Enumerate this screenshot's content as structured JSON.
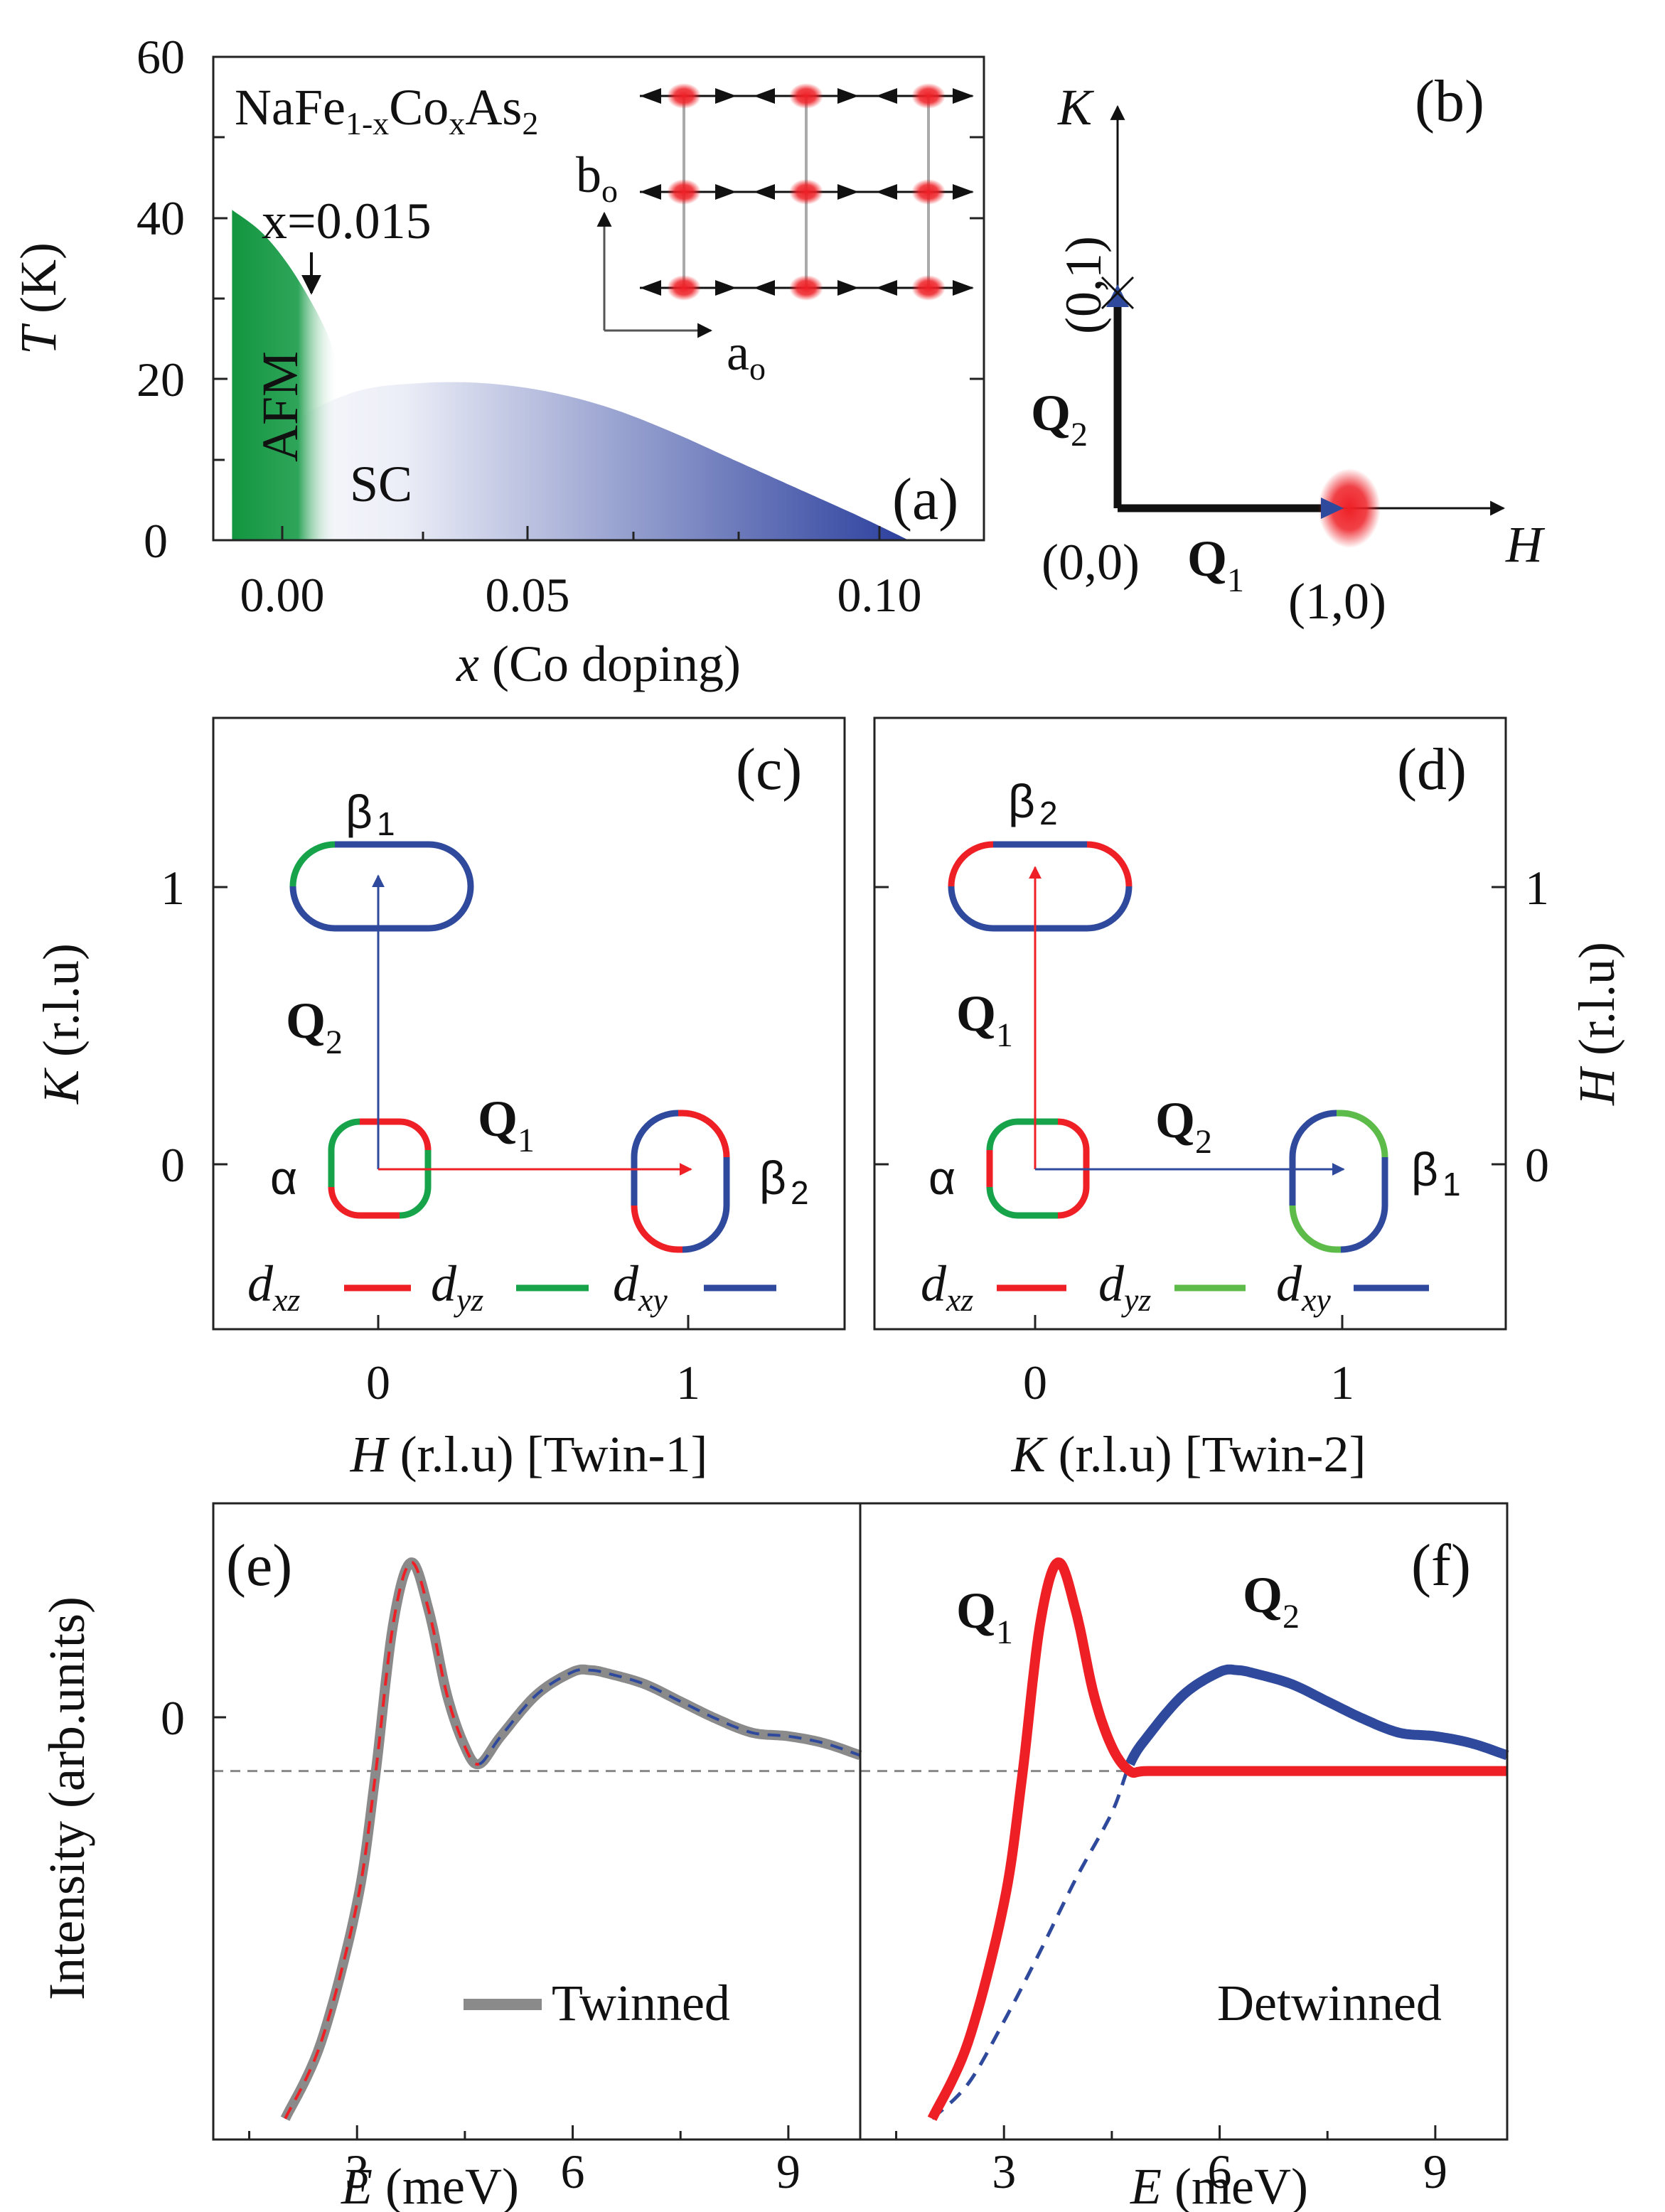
{
  "colors": {
    "afm": "#12953f",
    "sc": "#2b3f9d",
    "dxz": "#ee2026",
    "dyz": "#16a34a",
    "dyz_light": "#5dbb4a",
    "dxy": "#2f4a9c",
    "twinned": "#8a8a8a",
    "spot": "#ee2026"
  },
  "panel_a": {
    "label": "(a)",
    "formula": {
      "base": "NaFe",
      "sub1": "1-x",
      "mid": "Co",
      "sub2": "x",
      "end": "As",
      "sub3": "2"
    },
    "xlabel_var": "x",
    "xlabel_rest": " (Co doping)",
    "ylabel_var": "T",
    "ylabel_rest": " (K)",
    "xticks": [
      "0.00",
      "0.05",
      "0.10"
    ],
    "yticks": [
      "0",
      "20",
      "40",
      "60"
    ],
    "annotation": "x=0.015",
    "region_afm": "AFM",
    "region_sc": "SC",
    "inset_b": {
      "base": "b",
      "sub": "o"
    },
    "inset_a": {
      "base": "a",
      "sub": "o"
    }
  },
  "panel_b": {
    "label": "(b)",
    "k_axis": "K",
    "h_axis": "H",
    "origin": "(0,0)",
    "point_10": "(1,0)",
    "point_01": "(0,1)",
    "q1": {
      "base": "Q",
      "sub": "1"
    },
    "q2": {
      "base": "Q",
      "sub": "2"
    }
  },
  "panel_c": {
    "label": "(c)",
    "alpha": "α",
    "beta_top": {
      "base": "β",
      "sub": "1"
    },
    "beta_right": {
      "base": "β",
      "sub": "2"
    },
    "q_vertical": {
      "base": "Q",
      "sub": "2"
    },
    "q_horizontal": {
      "base": "Q",
      "sub": "1"
    },
    "xticks": [
      "0",
      "1"
    ],
    "yticks": [
      "0",
      "1"
    ],
    "xlabel_var": "H",
    "xlabel_rest": " (r.l.u) [Twin-1]",
    "ylabel_var": "K",
    "ylabel_rest": " (r.l.u)",
    "legend": [
      {
        "base": "d",
        "sub": "xz"
      },
      {
        "base": "d",
        "sub": "yz"
      },
      {
        "base": "d",
        "sub": "xy"
      }
    ]
  },
  "panel_d": {
    "label": "(d)",
    "alpha": "α",
    "beta_top": {
      "base": "β",
      "sub": "2"
    },
    "beta_right": {
      "base": "β",
      "sub": "1"
    },
    "q_vertical": {
      "base": "Q",
      "sub": "1"
    },
    "q_horizontal": {
      "base": "Q",
      "sub": "2"
    },
    "xticks": [
      "0",
      "1"
    ],
    "yticks": [
      "0",
      "1"
    ],
    "xlabel_var": "K",
    "xlabel_rest": " (r.l.u) [Twin-2]",
    "ylabel_var": "H",
    "ylabel_rest": " (r.l.u)",
    "legend": [
      {
        "base": "d",
        "sub": "xz"
      },
      {
        "base": "d",
        "sub": "yz"
      },
      {
        "base": "d",
        "sub": "xy"
      }
    ]
  },
  "panel_e": {
    "label": "(e)",
    "legend": "Twinned",
    "xlabel_var": "E",
    "xlabel_rest": " (meV)",
    "xticks": [
      "3",
      "6",
      "9"
    ],
    "ytick_zero": "0"
  },
  "panel_f": {
    "label": "(f)",
    "legend": "Detwinned",
    "xlabel_var": "E",
    "xlabel_rest": " (meV)",
    "xticks": [
      "3",
      "6",
      "9"
    ],
    "q1": {
      "base": "Q",
      "sub": "1"
    },
    "q2": {
      "base": "Q",
      "sub": "2"
    }
  },
  "shared_ylabel": "Intensity (arb.units)",
  "chart_data": [
    {
      "panel": "a",
      "type": "area",
      "xlim": [
        -0.003,
        0.12
      ],
      "ylim": [
        0,
        60
      ],
      "xlabel": "x (Co doping)",
      "ylabel": "T (K)",
      "series": [
        {
          "name": "AFM",
          "x": [
            0.0,
            0.005,
            0.01,
            0.015,
            0.017
          ],
          "y": [
            41,
            38,
            33,
            26,
            21
          ]
        },
        {
          "name": "SC",
          "x": [
            0.0,
            0.01,
            0.02,
            0.03,
            0.04,
            0.05,
            0.06,
            0.07,
            0.08,
            0.09,
            0.1,
            0.108
          ],
          "y": [
            10,
            15,
            18.5,
            19.5,
            19.5,
            18.5,
            16.5,
            13.5,
            10,
            6.5,
            3,
            0
          ]
        }
      ]
    },
    {
      "panel": "e",
      "type": "line",
      "xlim": [
        1.0,
        10.0
      ],
      "x": [
        2.0,
        2.5,
        3.0,
        3.25,
        3.5,
        3.75,
        4.0,
        4.25,
        4.5,
        4.7,
        5.0,
        5.5,
        6.0,
        6.25,
        6.5,
        7.0,
        7.5,
        8.0,
        8.5,
        9.0,
        9.5,
        10.0
      ],
      "series": [
        {
          "name": "Twinned",
          "values": [
            -1.0,
            -0.78,
            -0.38,
            -0.02,
            0.42,
            0.6,
            0.46,
            0.22,
            0.07,
            0.02,
            0.1,
            0.22,
            0.285,
            0.29,
            0.28,
            0.25,
            0.2,
            0.15,
            0.11,
            0.1,
            0.08,
            0.045
          ]
        }
      ]
    },
    {
      "panel": "f",
      "type": "line",
      "xlim": [
        1.0,
        10.0
      ],
      "series": [
        {
          "name": "Q1",
          "x": [
            2.0,
            2.5,
            3.0,
            3.25,
            3.5,
            3.75,
            4.0,
            4.25,
            4.5,
            4.75,
            5.0,
            6.0,
            7.0,
            8.0,
            9.0,
            10.0
          ],
          "values": [
            -1.0,
            -0.78,
            -0.38,
            -0.02,
            0.42,
            0.6,
            0.46,
            0.22,
            0.07,
            0.0,
            0.0,
            0.0,
            0.0,
            0.0,
            0.0,
            0.0
          ]
        },
        {
          "name": "Q2",
          "x": [
            2.0,
            2.5,
            3.0,
            3.5,
            4.0,
            4.5,
            4.75,
            5.0,
            5.5,
            6.0,
            6.25,
            6.5,
            7.0,
            7.5,
            8.0,
            8.5,
            9.0,
            9.5,
            10.0
          ],
          "values": [
            -1.0,
            -0.9,
            -0.72,
            -0.52,
            -0.31,
            -0.12,
            0.02,
            0.1,
            0.22,
            0.285,
            0.29,
            0.28,
            0.25,
            0.2,
            0.15,
            0.11,
            0.1,
            0.08,
            0.045
          ]
        }
      ]
    }
  ]
}
